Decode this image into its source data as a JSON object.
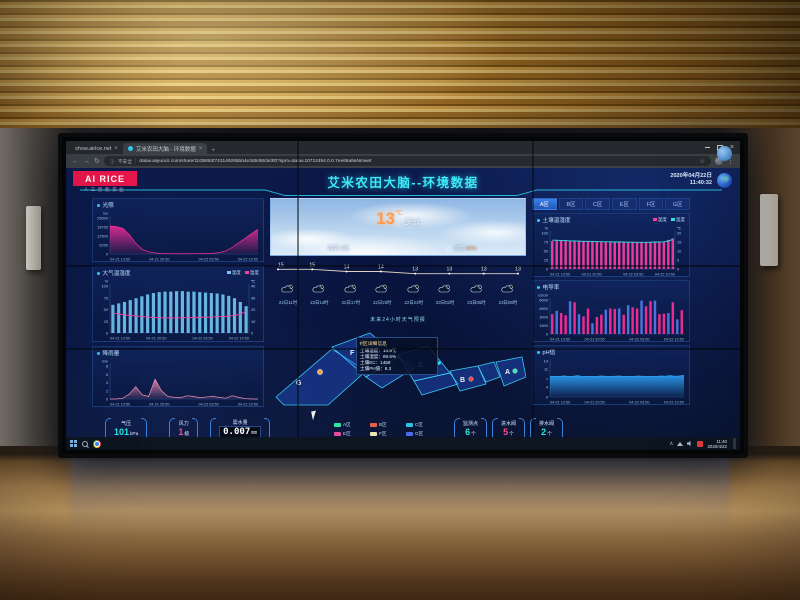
{
  "browser": {
    "tab1": "show.airice.net",
    "tab2": "艾米农田大脑 - 环境数据",
    "security": "不安全",
    "url": "datav.aliyuncs.com/share/1b35884f743149265bb4e3d94553e3f0?spm=datav.10712494.0.0.7ee66a9aNmwef"
  },
  "icons": {
    "back": "←",
    "forward": "→",
    "refresh": "↻",
    "info": "ⓘ",
    "star": "☆",
    "menu": "⋮",
    "plus": "+",
    "close": "×",
    "tray_up": "∧"
  },
  "header": {
    "logo": "AI RICE",
    "logo_sub": "人工智能农业",
    "title": "艾米农田大脑--环境数据",
    "date": "2020年04月22日",
    "time": "11:40:32"
  },
  "weather": {
    "temp": "13",
    "temp_unit": "℃",
    "desc": "多云",
    "wind_label": "西风",
    "wind_value": "1级",
    "humidity_label": "湿度",
    "humidity_value": "66%",
    "forecast_caption": "未来24小时天气预报",
    "forecast_times": [
      "22日11时",
      "22日14时",
      "22日17时",
      "22日20时",
      "22日23时",
      "23日02时",
      "23日05时",
      "23日08时"
    ]
  },
  "zone_tabs": {
    "items": [
      "A区",
      "B区",
      "C区",
      "E区",
      "F区",
      "G区"
    ],
    "active": 0
  },
  "map": {
    "zone_labels": [
      "G",
      "F",
      "C",
      "B",
      "A"
    ],
    "tooltip": {
      "title": "F区详细信息",
      "rows": [
        {
          "label": "土壤温度",
          "value": "14.8℃"
        },
        {
          "label": "土壤湿度",
          "value": "89.6%"
        },
        {
          "label": "土壤EC",
          "value": "1458"
        },
        {
          "label": "土壤PH值",
          "value": "8.3"
        }
      ]
    },
    "legend": [
      {
        "label": "A区",
        "color": "#2ee6a8"
      },
      {
        "label": "B区",
        "color": "#e8604b"
      },
      {
        "label": "C区",
        "color": "#29c4e8"
      },
      {
        "label": "E区",
        "color": "#e84b9a"
      },
      {
        "label": "F区",
        "color": "#f2e3b3"
      },
      {
        "label": "G区",
        "color": "#4b6fe8"
      }
    ]
  },
  "stats": {
    "left": [
      {
        "label": "气压",
        "value": "101",
        "unit": "kPa",
        "color": "#2ee6d8"
      },
      {
        "label": "风力",
        "value": "1",
        "unit": "级",
        "color": "#ff4d7d"
      }
    ],
    "water": {
      "label": "需水量",
      "value": "0.007",
      "unit": "mm"
    },
    "right": [
      {
        "label": "监测点",
        "value": "6",
        "unit": "个",
        "color": "#2ee6d8"
      },
      {
        "label": "进水阀",
        "value": "5",
        "unit": "个",
        "color": "#ff4d7d"
      },
      {
        "label": "排水阀",
        "value": "2",
        "unit": "个",
        "color": "#2ee6d8"
      }
    ]
  },
  "taskbar": {
    "time": "11:40",
    "date": "2020/4/22"
  },
  "chart_data": [
    {
      "id": "light",
      "type": "area",
      "title": "光照",
      "unit_left": "lux",
      "yticks": [
        0,
        6250,
        12500,
        18750,
        25000
      ],
      "xlabels": [
        "04-21 13:50",
        "04-21 20:50",
        "04-22 03:50",
        "04-22 10:50"
      ],
      "color": "#ff2d9b",
      "values": [
        19500,
        19000,
        17800,
        13500,
        7500,
        3200,
        1500,
        700,
        350,
        200,
        150,
        150,
        160,
        200,
        260,
        320,
        520,
        950,
        2100,
        4600,
        7800,
        10800,
        14200,
        17200
      ]
    },
    {
      "id": "air",
      "type": "bars",
      "title": "大气温湿度",
      "legend": [
        {
          "label": "湿度",
          "color": "#6fc3f0"
        },
        {
          "label": "温度",
          "color": "#ff3d9e"
        }
      ],
      "unit_left": "%",
      "yticks": [
        0,
        25,
        50,
        75,
        100
      ],
      "unit_right": "℃",
      "right_yticks": [
        0,
        10,
        20,
        30,
        40
      ],
      "bar_color": "#6fc3f0",
      "line_color": "#ff3d9e",
      "xlabels": [
        "04-21 13:50",
        "04-21 20:50",
        "04-22 03:50",
        "04-22 10:50"
      ],
      "bars": [
        60,
        63,
        66,
        70,
        74,
        78,
        82,
        85,
        87,
        88,
        88,
        89,
        89,
        88,
        88,
        87,
        86,
        85,
        84,
        82,
        79,
        74,
        66,
        57
      ],
      "line": [
        17,
        16.2,
        15.5,
        15,
        14.5,
        14,
        13.6,
        13.2,
        13,
        12.8,
        12.8,
        12.8,
        13,
        13,
        13.2,
        13.4,
        13.5,
        13.6,
        13.8,
        14,
        14.3,
        14.8,
        16,
        18.5
      ]
    },
    {
      "id": "rain",
      "type": "area",
      "title": "降雨量",
      "unit_left": "mm",
      "yticks": [
        0,
        2,
        4,
        6,
        8
      ],
      "xlabels": [
        "04-21 13:50",
        "04-21 20:50",
        "04-22 03:50",
        "04-22 10:50"
      ],
      "color": "#f48fb8",
      "values": [
        0,
        0,
        0.2,
        1.2,
        3.0,
        1.0,
        0.6,
        4.8,
        2.0,
        0.6,
        0.4,
        0.3,
        0.8,
        0.6,
        0.3,
        0.5,
        0.6,
        0.4,
        0.2,
        0.8,
        0.4,
        0.1,
        0,
        0
      ]
    },
    {
      "id": "forecast",
      "type": "line",
      "title": "未来24小时气温",
      "hide_axis": true,
      "point_labels": true,
      "yticks": [
        11,
        17
      ],
      "color": "#e0d2c0",
      "values": [
        15,
        15,
        14,
        14,
        13,
        13,
        13,
        13
      ]
    },
    {
      "id": "soil",
      "type": "bars",
      "title": "土壤温湿度",
      "legend": [
        {
          "label": "湿度",
          "color": "#ff3d9e"
        },
        {
          "label": "温度",
          "color": "#35e0e0"
        }
      ],
      "unit_left": "%",
      "yticks": [
        0,
        25,
        50,
        75,
        100
      ],
      "unit_right": "℃",
      "right_yticks": [
        0,
        5,
        10,
        15,
        20
      ],
      "bar_color": "#ff3d9e",
      "line_color": "#35e0e0",
      "xlabels": [
        "04-21 13:50",
        "04-21 20:50",
        "04-22 03:50",
        "04-22 10:50"
      ],
      "bars": [
        78,
        79,
        80,
        80,
        79,
        79,
        78,
        78,
        77,
        77,
        77,
        76,
        76,
        76,
        75,
        75,
        75,
        75,
        74,
        74,
        74,
        74,
        74,
        75,
        75,
        76,
        81,
        85
      ],
      "line": [
        16,
        16,
        15.8,
        15.8,
        15.6,
        15.6,
        15.5,
        15.4,
        15.4,
        15.3,
        15.2,
        15.2,
        15.1,
        15.1,
        15,
        15,
        15,
        14.9,
        14.9,
        14.8,
        14.8,
        14.8,
        14.9,
        15,
        15,
        15.1,
        15.6,
        16.4
      ]
    },
    {
      "id": "ec",
      "type": "bars",
      "title": "电导率",
      "unit_left": "us/cm",
      "yticks": [
        0,
        1500,
        3000,
        4500,
        6000
      ],
      "xlabels": [
        "04-21 13:50",
        "04-21 20:50",
        "04-22 03:50",
        "04-22 10:50"
      ],
      "bar_colors": [
        "#ff2d9b",
        "#4f7bea"
      ],
      "color_idx": [
        0,
        1,
        0,
        0,
        1,
        0,
        1,
        0,
        0,
        1,
        0,
        0,
        1,
        0,
        0,
        1,
        0,
        1,
        0,
        0,
        1,
        0,
        0,
        1,
        0,
        0,
        1,
        0,
        1,
        0
      ],
      "bars": [
        3500,
        4100,
        3700,
        3300,
        5800,
        5600,
        3500,
        3100,
        4500,
        1900,
        3000,
        3400,
        4300,
        4500,
        4400,
        4500,
        3400,
        5100,
        4700,
        4500,
        5900,
        4900,
        5800,
        5900,
        3500,
        3600,
        3700,
        5600,
        2600,
        4200
      ]
    },
    {
      "id": "ph",
      "type": "area",
      "title": "pH值",
      "yticks": [
        0,
        4,
        7,
        11,
        14
      ],
      "xlabels": [
        "04-21 13:50",
        "04-21 20:50",
        "04-22 03:50",
        "04-22 10:50"
      ],
      "color": "#2fa8ff",
      "values": [
        8,
        8.1,
        8,
        8.2,
        8,
        8.1,
        8.3,
        8,
        8.1,
        8,
        8,
        8.2,
        8.1,
        8,
        8.1,
        8.2,
        8,
        8.1,
        8,
        8.2,
        8.1,
        8,
        8.1,
        8,
        8.2,
        8.1,
        8.3,
        8.1,
        8.2,
        8.4
      ]
    }
  ]
}
